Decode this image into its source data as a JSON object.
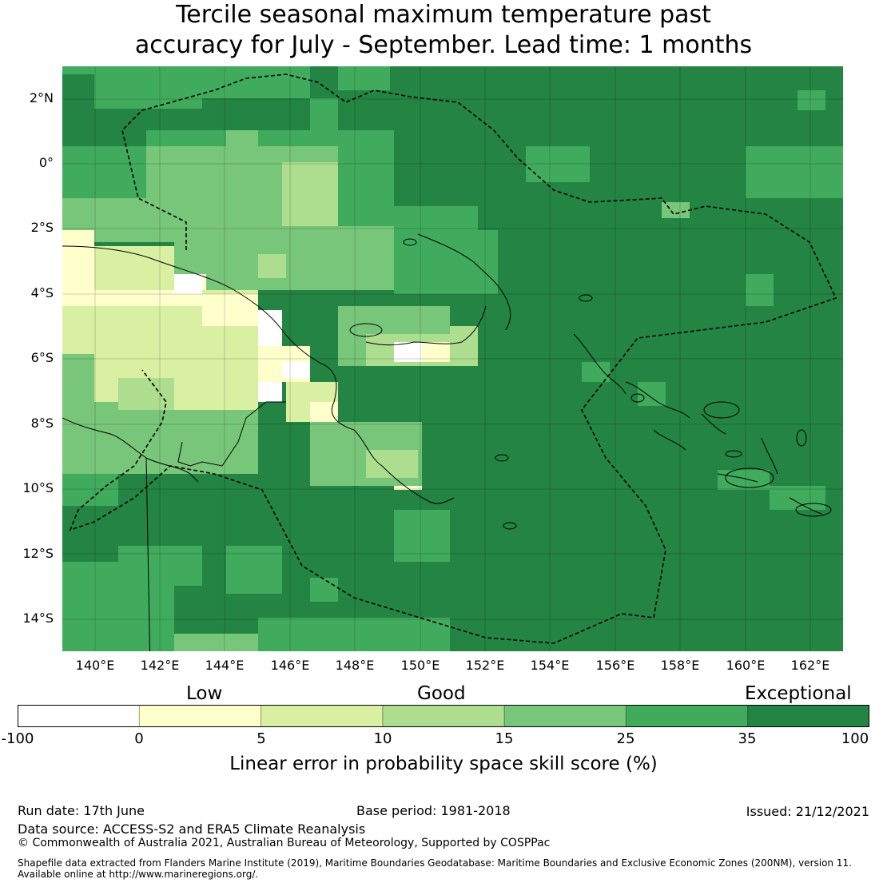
{
  "title_line1": "Tercile seasonal maximum temperature past",
  "title_line2": "accuracy for July - September. Lead time: 1 months",
  "map": {
    "lon_range": [
      139,
      163
    ],
    "lat_range": [
      -15,
      3
    ],
    "lat_ticks": [
      "2°N",
      "0°",
      "2°S",
      "4°S",
      "6°S",
      "8°S",
      "10°S",
      "12°S",
      "14°S"
    ],
    "lat_values": [
      2,
      0,
      -2,
      -4,
      -6,
      -8,
      -10,
      -12,
      -14
    ],
    "lon_ticks": [
      "140°E",
      "142°E",
      "144°E",
      "146°E",
      "148°E",
      "150°E",
      "152°E",
      "154°E",
      "156°E",
      "158°E",
      "160°E",
      "162°E"
    ],
    "lon_values": [
      140,
      142,
      144,
      146,
      148,
      150,
      152,
      154,
      156,
      158,
      160,
      162
    ]
  },
  "colorbar": {
    "categories": [
      "Low",
      "Good",
      "Exceptional"
    ],
    "ticks": [
      "-100",
      "0",
      "5",
      "10",
      "15",
      "25",
      "35",
      "100"
    ],
    "colors": [
      "#ffffff",
      "#ffffcc",
      "#d9f0a3",
      "#addd8e",
      "#78c679",
      "#41ab5d",
      "#238443"
    ],
    "title": "Linear error in probability space skill score (%)"
  },
  "footer": {
    "run_date": "Run date: 17th June",
    "base_period": "Base period: 1981-2018",
    "issued": "Issued: 21/12/2021",
    "data_source": "Data source: ACCESS-S2 and ERA5 Climate Reanalysis",
    "copyright": "© Commonwealth of Australia 2021, Australian Bureau of Meteorology, Supported by COSPPac",
    "shapefile_line1": "Shapefile data extracted from Flanders Marine Institute (2019), Maritime Boundaries Geodatabase: Maritime Boundaries and Exclusive Economic Zones (200NM), version 11.",
    "shapefile_line2": "Available online at http://www.marineregions.org/."
  }
}
